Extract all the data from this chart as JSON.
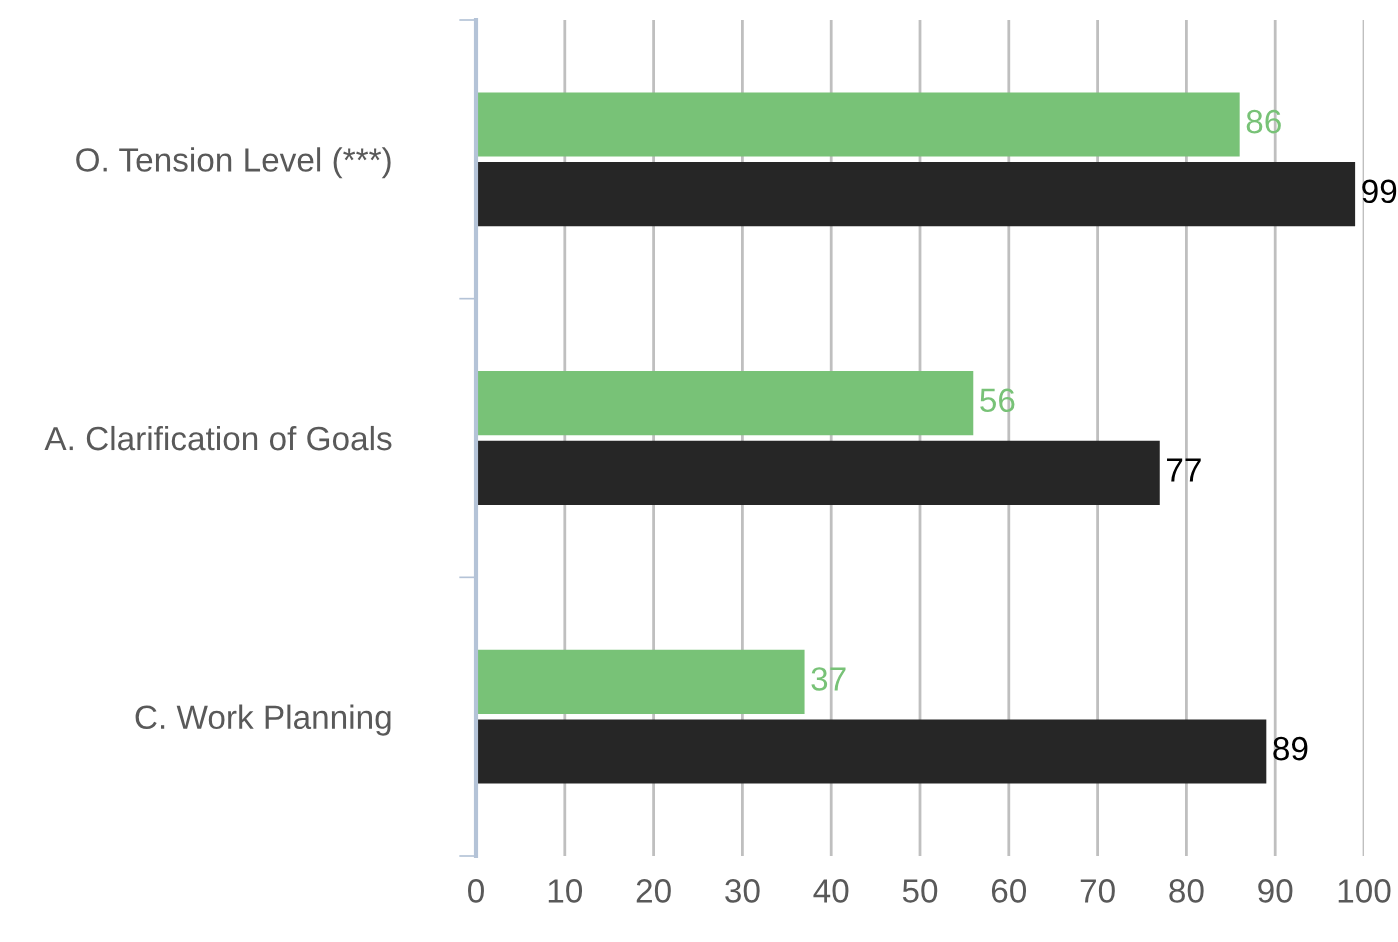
{
  "chart_data": {
    "type": "bar",
    "orientation": "horizontal",
    "categories": [
      "O. Tension Level (***)",
      "A. Clarification of Goals",
      "C. Work Planning"
    ],
    "series": [
      {
        "color": "#78c277",
        "values": [
          86,
          56,
          37
        ]
      },
      {
        "color": "#262626",
        "values": [
          99,
          77,
          89
        ]
      }
    ],
    "xlim": [
      0,
      100
    ],
    "xticks": [
      0,
      10,
      20,
      30,
      40,
      50,
      60,
      70,
      80,
      90,
      100
    ],
    "grid": "x",
    "data_labels": true,
    "legend": false
  }
}
